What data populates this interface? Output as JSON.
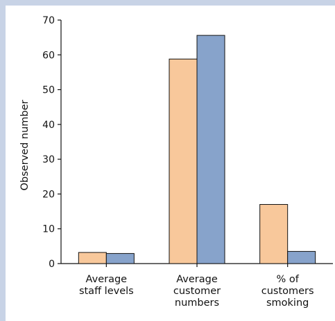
{
  "chart_data": {
    "type": "bar",
    "title": "",
    "ylabel": "Observed number",
    "xlabel": "",
    "ylim": [
      0,
      70
    ],
    "yticks": [
      0,
      10,
      20,
      30,
      40,
      50,
      60,
      70
    ],
    "categories": [
      [
        "Average",
        "staff levels"
      ],
      [
        "Average",
        "customer",
        "numbers"
      ],
      [
        "% of",
        "customers",
        "smoking"
      ]
    ],
    "series": [
      {
        "values": [
          3.2,
          58.8,
          17.0
        ],
        "color": "#f8c89b"
      },
      {
        "values": [
          2.9,
          65.6,
          3.5
        ],
        "color": "#87a3cb"
      }
    ],
    "grid": false,
    "legend": "none"
  }
}
